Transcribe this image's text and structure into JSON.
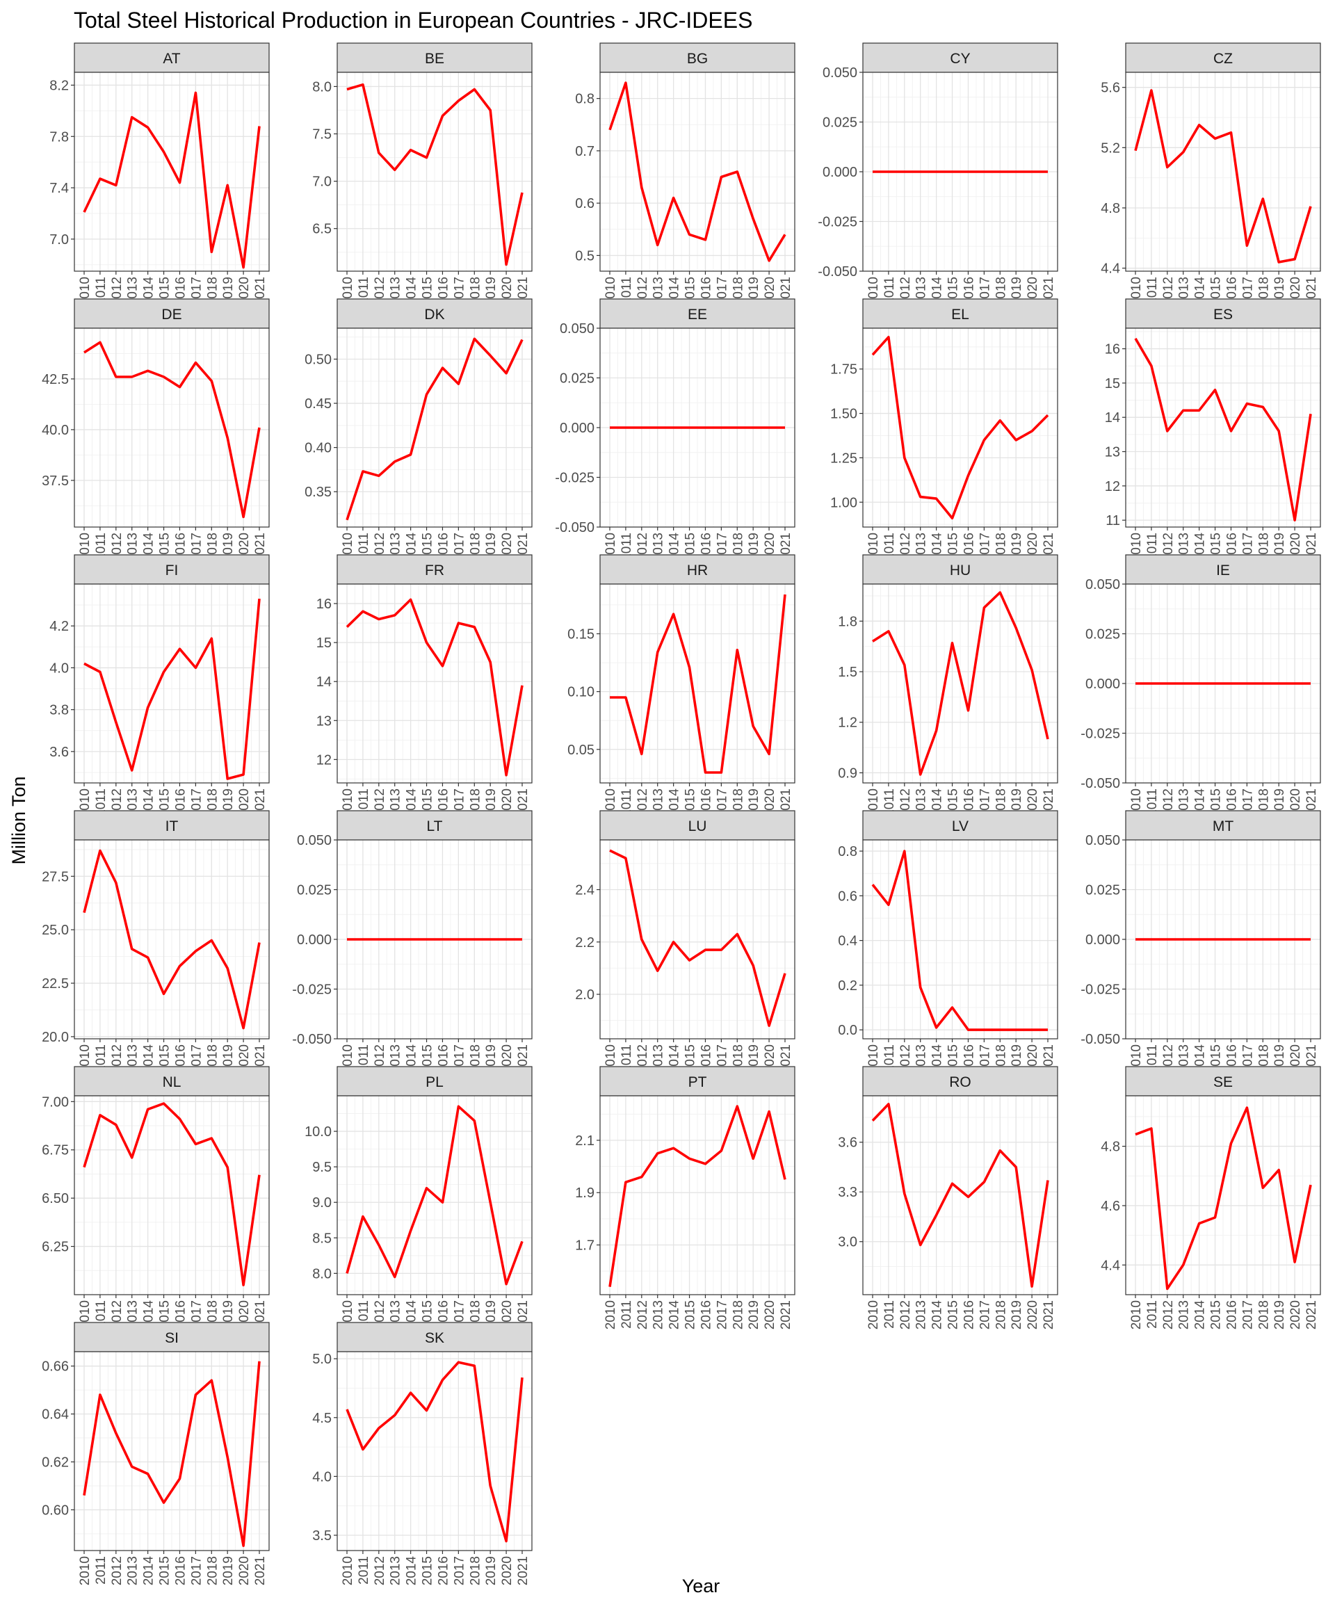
{
  "chart_data": {
    "type": "line",
    "title": "Total Steel Historical Production in European Countries - JRC-IDEES",
    "xlabel": "Year",
    "ylabel": "Million Ton",
    "line_color": "#ff0000",
    "strip_fill": "#d9d9d9",
    "grid": true,
    "legend": "none",
    "x": [
      "2010",
      "2011",
      "2012",
      "2013",
      "2014",
      "2015",
      "2016",
      "2017",
      "2018",
      "2019",
      "2020",
      "2021"
    ],
    "panels": [
      {
        "name": "AT",
        "ylim": [
          6.75,
          8.3
        ],
        "yticks": [
          "7.0",
          "7.4",
          "7.8",
          "8.2"
        ],
        "values": [
          7.21,
          7.47,
          7.42,
          7.95,
          7.87,
          7.68,
          7.44,
          8.14,
          6.9,
          7.42,
          6.78,
          7.88
        ]
      },
      {
        "name": "BE",
        "ylim": [
          6.05,
          8.15
        ],
        "yticks": [
          "6.5",
          "7.0",
          "7.5",
          "8.0"
        ],
        "values": [
          7.97,
          8.02,
          7.3,
          7.12,
          7.33,
          7.25,
          7.69,
          7.85,
          7.97,
          7.75,
          6.12,
          6.88
        ]
      },
      {
        "name": "BG",
        "ylim": [
          0.47,
          0.85
        ],
        "yticks": [
          "0.5",
          "0.6",
          "0.7",
          "0.8"
        ],
        "values": [
          0.74,
          0.83,
          0.63,
          0.52,
          0.61,
          0.54,
          0.53,
          0.65,
          0.66,
          0.57,
          0.49,
          0.54
        ]
      },
      {
        "name": "CY",
        "ylim": [
          -0.05,
          0.05
        ],
        "yticks": [
          "-0.050",
          "-0.025",
          "0.000",
          "0.025",
          "0.050"
        ],
        "values": [
          0,
          0,
          0,
          0,
          0,
          0,
          0,
          0,
          0,
          0,
          0,
          0
        ]
      },
      {
        "name": "CZ",
        "ylim": [
          4.38,
          5.7
        ],
        "yticks": [
          "4.4",
          "4.8",
          "5.2",
          "5.6"
        ],
        "values": [
          5.18,
          5.58,
          5.07,
          5.17,
          5.35,
          5.26,
          5.3,
          4.55,
          4.86,
          4.44,
          4.46,
          4.81
        ]
      },
      {
        "name": "DE",
        "ylim": [
          35.2,
          45.0
        ],
        "yticks": [
          "37.5",
          "40.0",
          "42.5"
        ],
        "values": [
          43.8,
          44.3,
          42.6,
          42.6,
          42.9,
          42.6,
          42.1,
          43.3,
          42.4,
          39.6,
          35.7,
          40.1
        ]
      },
      {
        "name": "DK",
        "ylim": [
          0.31,
          0.535
        ],
        "yticks": [
          "0.35",
          "0.40",
          "0.45",
          "0.50"
        ],
        "values": [
          0.318,
          0.373,
          0.368,
          0.384,
          0.392,
          0.46,
          0.49,
          0.472,
          0.523,
          0.504,
          0.484,
          0.522
        ]
      },
      {
        "name": "EE",
        "ylim": [
          -0.05,
          0.05
        ],
        "yticks": [
          "-0.050",
          "-0.025",
          "0.000",
          "0.025",
          "0.050"
        ],
        "values": [
          0,
          0,
          0,
          0,
          0,
          0,
          0,
          0,
          0,
          0,
          0,
          0
        ]
      },
      {
        "name": "EL",
        "ylim": [
          0.86,
          1.98
        ],
        "yticks": [
          "1.00",
          "1.25",
          "1.50",
          "1.75"
        ],
        "values": [
          1.83,
          1.93,
          1.25,
          1.03,
          1.02,
          0.91,
          1.15,
          1.35,
          1.46,
          1.35,
          1.4,
          1.49
        ]
      },
      {
        "name": "ES",
        "ylim": [
          10.8,
          16.6
        ],
        "yticks": [
          "11",
          "12",
          "13",
          "14",
          "15",
          "16"
        ],
        "values": [
          16.3,
          15.5,
          13.6,
          14.2,
          14.2,
          14.8,
          13.6,
          14.4,
          14.3,
          13.6,
          11.0,
          14.1
        ]
      },
      {
        "name": "FI",
        "ylim": [
          3.45,
          4.4
        ],
        "yticks": [
          "3.6",
          "3.8",
          "4.0",
          "4.2"
        ],
        "values": [
          4.02,
          3.98,
          3.74,
          3.51,
          3.81,
          3.98,
          4.09,
          4.0,
          4.14,
          3.47,
          3.49,
          4.33
        ]
      },
      {
        "name": "FR",
        "ylim": [
          11.4,
          16.5
        ],
        "yticks": [
          "12",
          "13",
          "14",
          "15",
          "16"
        ],
        "values": [
          15.4,
          15.8,
          15.6,
          15.7,
          16.1,
          15.0,
          14.4,
          15.5,
          15.4,
          14.5,
          11.6,
          13.9
        ]
      },
      {
        "name": "HR",
        "ylim": [
          0.021,
          0.193
        ],
        "yticks": [
          "0.05",
          "0.10",
          "0.15"
        ],
        "values": [
          0.095,
          0.095,
          0.046,
          0.134,
          0.167,
          0.121,
          0.03,
          0.03,
          0.136,
          0.07,
          0.046,
          0.184
        ]
      },
      {
        "name": "HU",
        "ylim": [
          0.84,
          2.02
        ],
        "yticks": [
          "0.9",
          "1.2",
          "1.5",
          "1.8"
        ],
        "values": [
          1.68,
          1.74,
          1.54,
          0.89,
          1.15,
          1.67,
          1.27,
          1.88,
          1.97,
          1.76,
          1.51,
          1.1
        ]
      },
      {
        "name": "IE",
        "ylim": [
          -0.05,
          0.05
        ],
        "yticks": [
          "-0.050",
          "-0.025",
          "0.000",
          "0.025",
          "0.050"
        ],
        "values": [
          0,
          0,
          0,
          0,
          0,
          0,
          0,
          0,
          0,
          0,
          0,
          0
        ]
      },
      {
        "name": "IT",
        "ylim": [
          19.9,
          29.2
        ],
        "yticks": [
          "20.0",
          "22.5",
          "25.0",
          "27.5"
        ],
        "values": [
          25.8,
          28.7,
          27.2,
          24.1,
          23.7,
          22.0,
          23.3,
          24.0,
          24.5,
          23.2,
          20.4,
          24.4
        ]
      },
      {
        "name": "LT",
        "ylim": [
          -0.05,
          0.05
        ],
        "yticks": [
          "-0.050",
          "-0.025",
          "0.000",
          "0.025",
          "0.050"
        ],
        "values": [
          0,
          0,
          0,
          0,
          0,
          0,
          0,
          0,
          0,
          0,
          0,
          0
        ]
      },
      {
        "name": "LU",
        "ylim": [
          1.83,
          2.59
        ],
        "yticks": [
          "2.0",
          "2.2",
          "2.4"
        ],
        "values": [
          2.55,
          2.52,
          2.21,
          2.09,
          2.2,
          2.13,
          2.17,
          2.17,
          2.23,
          2.11,
          1.88,
          2.08
        ]
      },
      {
        "name": "LV",
        "ylim": [
          -0.04,
          0.85
        ],
        "yticks": [
          "0.0",
          "0.2",
          "0.4",
          "0.6",
          "0.8"
        ],
        "values": [
          0.65,
          0.56,
          0.8,
          0.19,
          0.01,
          0.1,
          0.0,
          0.0,
          0.0,
          0.0,
          0.0,
          0.0
        ]
      },
      {
        "name": "MT",
        "ylim": [
          -0.05,
          0.05
        ],
        "yticks": [
          "-0.050",
          "-0.025",
          "0.000",
          "0.025",
          "0.050"
        ],
        "values": [
          0,
          0,
          0,
          0,
          0,
          0,
          0,
          0,
          0,
          0,
          0,
          0
        ]
      },
      {
        "name": "NL",
        "ylim": [
          6.0,
          7.03
        ],
        "yticks": [
          "6.25",
          "6.50",
          "6.75",
          "7.00"
        ],
        "values": [
          6.66,
          6.93,
          6.88,
          6.71,
          6.96,
          6.99,
          6.91,
          6.78,
          6.81,
          6.66,
          6.05,
          6.62
        ]
      },
      {
        "name": "PL",
        "ylim": [
          7.7,
          10.5
        ],
        "yticks": [
          "8.0",
          "8.5",
          "9.0",
          "9.5",
          "10.0"
        ],
        "values": [
          8.0,
          8.8,
          8.4,
          7.95,
          8.6,
          9.2,
          9.0,
          10.35,
          10.15,
          9.0,
          7.85,
          8.45
        ]
      },
      {
        "name": "PT",
        "ylim": [
          1.51,
          2.27
        ],
        "yticks": [
          "1.7",
          "1.9",
          "2.1"
        ],
        "values": [
          1.54,
          1.94,
          1.96,
          2.05,
          2.07,
          2.03,
          2.01,
          2.06,
          2.23,
          2.03,
          2.21,
          1.95
        ]
      },
      {
        "name": "RO",
        "ylim": [
          2.68,
          3.88
        ],
        "yticks": [
          "3.0",
          "3.3",
          "3.6"
        ],
        "values": [
          3.73,
          3.83,
          3.29,
          2.98,
          3.16,
          3.35,
          3.27,
          3.36,
          3.55,
          3.45,
          2.73,
          3.37
        ]
      },
      {
        "name": "SE",
        "ylim": [
          4.3,
          4.97
        ],
        "yticks": [
          "4.4",
          "4.6",
          "4.8"
        ],
        "values": [
          4.84,
          4.86,
          4.32,
          4.4,
          4.54,
          4.56,
          4.81,
          4.93,
          4.66,
          4.72,
          4.41,
          4.67
        ]
      },
      {
        "name": "SI",
        "ylim": [
          0.583,
          0.666
        ],
        "yticks": [
          "0.60",
          "0.62",
          "0.64",
          "0.66"
        ],
        "values": [
          0.606,
          0.648,
          0.632,
          0.618,
          0.615,
          0.603,
          0.613,
          0.648,
          0.654,
          0.622,
          0.585,
          0.662
        ]
      },
      {
        "name": "SK",
        "ylim": [
          3.37,
          5.06
        ],
        "yticks": [
          "3.5",
          "4.0",
          "4.5",
          "5.0"
        ],
        "values": [
          4.57,
          4.23,
          4.41,
          4.52,
          4.71,
          4.56,
          4.82,
          4.97,
          4.94,
          3.92,
          3.45,
          4.84
        ]
      }
    ]
  }
}
